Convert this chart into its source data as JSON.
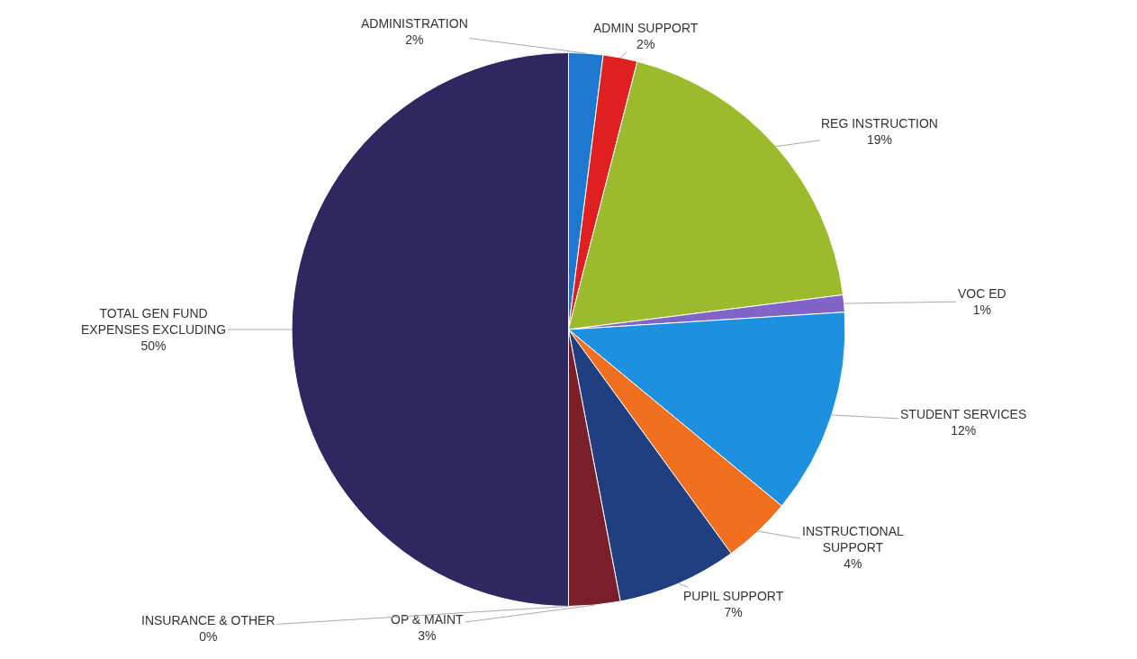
{
  "chart_data": {
    "type": "pie",
    "categories": [
      "ADMINISTRATION",
      "ADMIN SUPPORT",
      "REG INSTRUCTION",
      "VOC ED",
      "STUDENT SERVICES",
      "INSTRUCTIONAL SUPPORT",
      "PUPIL SUPPORT",
      "OP & MAINT",
      "INSURANCE & OTHER",
      "TOTAL GEN FUND EXPENSES EXCLUDING"
    ],
    "values": [
      2,
      2,
      19,
      1,
      12,
      4,
      7,
      3,
      0,
      50
    ],
    "value_labels": [
      "2%",
      "2%",
      "19%",
      "1%",
      "12%",
      "4%",
      "7%",
      "3%",
      "0%",
      "50%"
    ],
    "colors": [
      "#1f78d0",
      "#e02020",
      "#9bbb2c",
      "#8064c8",
      "#1e90e0",
      "#f07020",
      "#1f3f80",
      "#7a1f2a",
      "#2a6a3a",
      "#2e2760"
    ],
    "data_labels": true,
    "legend": false
  }
}
